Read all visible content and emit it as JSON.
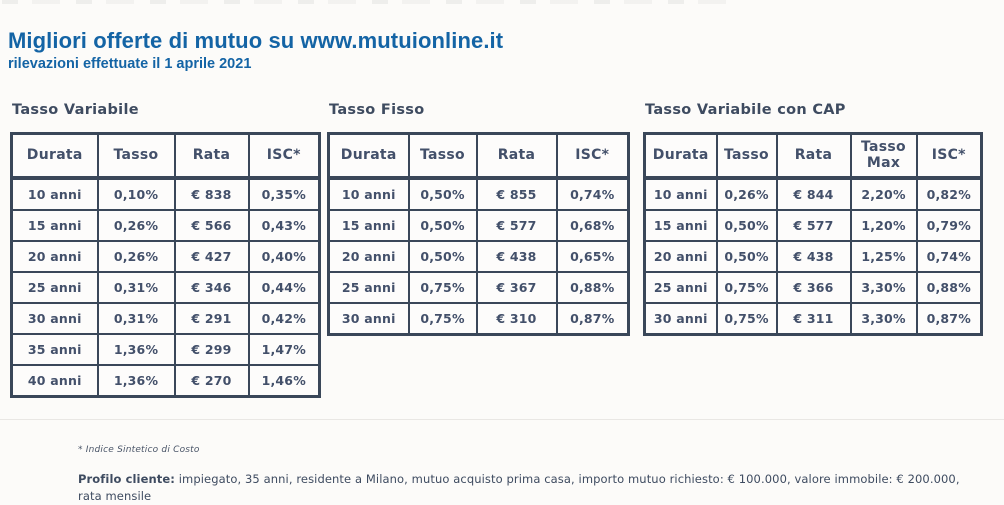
{
  "page": {
    "title": "Migliori offerte di mutuo su www.mutuionline.it",
    "subtitle": "rilevazioni effettuate il 1 aprile 2021"
  },
  "colors": {
    "accent_blue": "#1464a5",
    "table_ink": "#3a4759",
    "cell_text": "#43506a"
  },
  "tables": [
    {
      "title": "Tasso Variabile",
      "columns": [
        "Durata",
        "Tasso",
        "Rata",
        "ISC*"
      ],
      "rows": [
        [
          "10 anni",
          "0,10%",
          "€ 838",
          "0,35%"
        ],
        [
          "15 anni",
          "0,26%",
          "€ 566",
          "0,43%"
        ],
        [
          "20 anni",
          "0,26%",
          "€ 427",
          "0,40%"
        ],
        [
          "25 anni",
          "0,31%",
          "€ 346",
          "0,44%"
        ],
        [
          "30 anni",
          "0,31%",
          "€ 291",
          "0,42%"
        ],
        [
          "35 anni",
          "1,36%",
          "€ 299",
          "1,47%"
        ],
        [
          "40 anni",
          "1,36%",
          "€ 270",
          "1,46%"
        ]
      ]
    },
    {
      "title": "Tasso Fisso",
      "columns": [
        "Durata",
        "Tasso",
        "Rata",
        "ISC*"
      ],
      "rows": [
        [
          "10 anni",
          "0,50%",
          "€ 855",
          "0,74%"
        ],
        [
          "15 anni",
          "0,50%",
          "€ 577",
          "0,68%"
        ],
        [
          "20 anni",
          "0,50%",
          "€ 438",
          "0,65%"
        ],
        [
          "25 anni",
          "0,75%",
          "€ 367",
          "0,88%"
        ],
        [
          "30 anni",
          "0,75%",
          "€ 310",
          "0,87%"
        ]
      ]
    },
    {
      "title": "Tasso Variabile con CAP",
      "columns": [
        "Durata",
        "Tasso",
        "Rata",
        "Tasso Max",
        "ISC*"
      ],
      "rows": [
        [
          "10 anni",
          "0,26%",
          "€ 844",
          "2,20%",
          "0,82%"
        ],
        [
          "15 anni",
          "0,50%",
          "€ 577",
          "1,20%",
          "0,79%"
        ],
        [
          "20 anni",
          "0,50%",
          "€ 438",
          "1,25%",
          "0,74%"
        ],
        [
          "25 anni",
          "0,75%",
          "€ 366",
          "3,30%",
          "0,88%"
        ],
        [
          "30 anni",
          "0,75%",
          "€ 311",
          "3,30%",
          "0,87%"
        ]
      ]
    }
  ],
  "footer": {
    "footnote": "* Indice Sintetico di Costo",
    "profile_label": "Profilo cliente:",
    "profile_line1": " impiegato, 35 anni, residente a Milano, mutuo acquisto prima casa, importo mutuo richiesto: € 100.000, valore immobile: € 200.000,",
    "profile_line2": "rata mensile"
  }
}
